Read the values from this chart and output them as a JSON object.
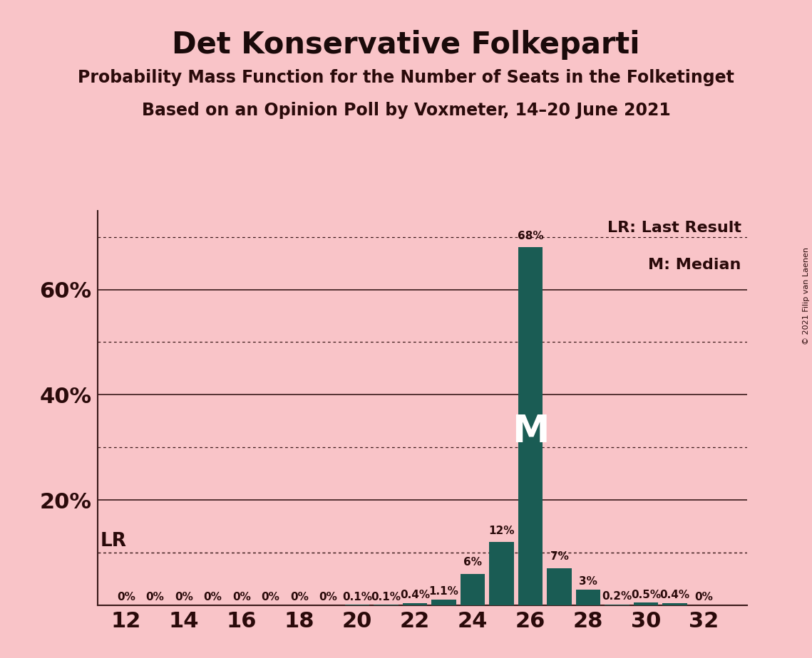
{
  "title": "Det Konservative Folkeparti",
  "subtitle1": "Probability Mass Function for the Number of Seats in the Folketinget",
  "subtitle2": "Based on an Opinion Poll by Voxmeter, 14–20 June 2021",
  "copyright": "© 2021 Filip van Laenen",
  "background_color": "#f9c4c8",
  "bar_color": "#1a5c54",
  "title_color": "#1a0a0a",
  "text_color": "#2a0a0a",
  "seats": [
    12,
    13,
    14,
    15,
    16,
    17,
    18,
    19,
    20,
    21,
    22,
    23,
    24,
    25,
    26,
    27,
    28,
    29,
    30,
    31,
    32
  ],
  "probabilities": [
    0.0,
    0.0,
    0.0,
    0.0,
    0.0,
    0.0,
    0.0,
    0.0,
    0.1,
    0.1,
    0.4,
    1.1,
    6.0,
    12.0,
    68.0,
    7.0,
    3.0,
    0.2,
    0.5,
    0.4,
    0.0
  ],
  "bar_labels": [
    "0%",
    "0%",
    "0%",
    "0%",
    "0%",
    "0%",
    "0%",
    "0%",
    "0.1%",
    "0.1%",
    "0.4%",
    "1.1%",
    "6%",
    "12%",
    "68%",
    "7%",
    "3%",
    "0.2%",
    "0.5%",
    "0.4%",
    "0%"
  ],
  "median_seat": 26,
  "last_result_pct": 10.0,
  "ylim": [
    0,
    75
  ],
  "solid_gridlines": [
    20,
    40,
    60
  ],
  "dotted_gridlines": [
    10,
    30,
    50,
    70
  ],
  "xticks": [
    12,
    14,
    16,
    18,
    20,
    22,
    24,
    26,
    28,
    30,
    32
  ],
  "yticks": [
    20,
    40,
    60
  ],
  "legend_lr": "LR: Last Result",
  "legend_m": "M: Median"
}
